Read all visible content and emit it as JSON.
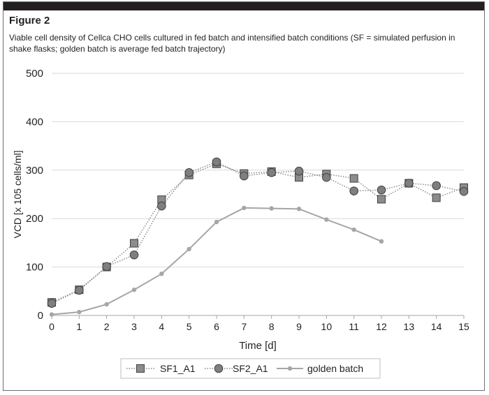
{
  "figure": {
    "title": "Figure 2",
    "caption": "Viable cell density of Cellca CHO cells cultured in fed batch and intensified batch conditions (SF = simulated perfusion in shake flasks; golden batch is average fed batch trajectory)"
  },
  "chart_data": {
    "type": "line",
    "title": "",
    "xlabel": "Time [d]",
    "ylabel": "VCD [x 105 cells/ml]",
    "xlim": [
      0,
      15
    ],
    "ylim": [
      0,
      500
    ],
    "x_ticks": [
      0,
      1,
      2,
      3,
      4,
      5,
      6,
      7,
      8,
      9,
      10,
      11,
      12,
      13,
      14,
      15
    ],
    "y_ticks": [
      0,
      100,
      200,
      300,
      400,
      500
    ],
    "grid": "horizontal",
    "legend_position": "bottom",
    "series": [
      {
        "name": "SF1_A1",
        "marker": "square",
        "line_style": "dotted",
        "color": "#8c8c8c",
        "x": [
          0,
          1,
          2,
          3,
          4,
          5,
          6,
          7,
          8,
          9,
          10,
          11,
          12,
          13,
          14,
          15
        ],
        "y": [
          27,
          53,
          100,
          149,
          239,
          290,
          313,
          293,
          297,
          285,
          292,
          283,
          240,
          273,
          243,
          264
        ]
      },
      {
        "name": "SF2_A1",
        "marker": "circle",
        "line_style": "dotted",
        "color": "#8c8c8c",
        "x": [
          0,
          1,
          2,
          3,
          4,
          5,
          6,
          7,
          8,
          9,
          10,
          11,
          12,
          13,
          14,
          15
        ],
        "y": [
          25,
          52,
          101,
          125,
          226,
          295,
          317,
          288,
          295,
          298,
          285,
          257,
          259,
          273,
          268,
          256
        ]
      },
      {
        "name": "golden batch",
        "marker": "dot",
        "line_style": "solid",
        "color": "#a6a6a6",
        "x": [
          0,
          1,
          2,
          3,
          4,
          5,
          6,
          7,
          8,
          9,
          10,
          11,
          12
        ],
        "y": [
          2,
          7,
          23,
          53,
          86,
          137,
          193,
          222,
          221,
          220,
          198,
          177,
          153
        ]
      }
    ]
  }
}
